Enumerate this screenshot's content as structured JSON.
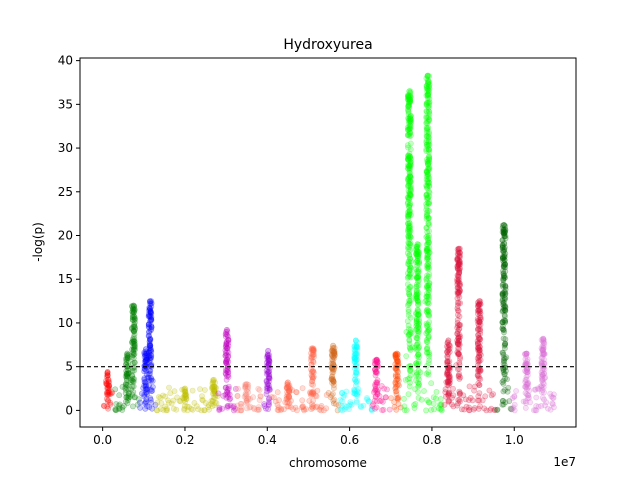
{
  "chart_data": {
    "type": "scatter",
    "title": "Hydroxyurea",
    "xlabel": "chromosome",
    "ylabel": "-log(p)",
    "x_offset_label": "1e7",
    "xlim": [
      -0.055,
      1.15
    ],
    "ylim": [
      -1.9,
      40.3
    ],
    "x_ticks": [
      0.0,
      0.2,
      0.4,
      0.6,
      0.8,
      1.0
    ],
    "x_tick_labels": [
      "0.0",
      "0.2",
      "0.4",
      "0.6",
      "0.8",
      "1.0"
    ],
    "y_ticks": [
      0,
      5,
      10,
      15,
      20,
      25,
      30,
      35,
      40
    ],
    "y_tick_labels": [
      "0",
      "5",
      "10",
      "15",
      "20",
      "25",
      "30",
      "35",
      "40"
    ],
    "threshold": 5,
    "grid": false,
    "series": [
      {
        "color": "#ff0000",
        "x_range": [
          0.0,
          0.025
        ],
        "peaks": [
          [
            0.012,
            4.4
          ]
        ]
      },
      {
        "color": "#008000",
        "x_range": [
          0.025,
          0.09
        ],
        "peaks": [
          [
            0.075,
            12.0
          ],
          [
            0.06,
            6.5
          ]
        ]
      },
      {
        "color": "#0000ff",
        "x_range": [
          0.09,
          0.13
        ],
        "peaks": [
          [
            0.115,
            12.5
          ],
          [
            0.105,
            7.0
          ]
        ]
      },
      {
        "color": "#bfbf00",
        "x_range": [
          0.13,
          0.28
        ],
        "peaks": [
          [
            0.27,
            3.5
          ],
          [
            0.2,
            2.5
          ]
        ]
      },
      {
        "color": "#bf00bf",
        "x_range": [
          0.28,
          0.325
        ],
        "peaks": [
          [
            0.302,
            9.2
          ]
        ]
      },
      {
        "color": "#fa8072",
        "x_range": [
          0.325,
          0.39
        ],
        "peaks": [
          [
            0.35,
            3.0
          ]
        ]
      },
      {
        "color": "#9400d3",
        "x_range": [
          0.39,
          0.41
        ],
        "peaks": [
          [
            0.402,
            6.8
          ]
        ]
      },
      {
        "color": "#ff6347",
        "x_range": [
          0.41,
          0.545
        ],
        "peaks": [
          [
            0.51,
            7.1
          ],
          [
            0.45,
            3.2
          ]
        ]
      },
      {
        "color": "#d2691e",
        "x_range": [
          0.545,
          0.575
        ],
        "peaks": [
          [
            0.56,
            7.4
          ]
        ]
      },
      {
        "color": "#00ffff",
        "x_range": [
          0.575,
          0.655
        ],
        "peaks": [
          [
            0.615,
            8.0
          ]
        ]
      },
      {
        "color": "#ff1493",
        "x_range": [
          0.655,
          0.7
        ],
        "peaks": [
          [
            0.665,
            5.8
          ]
        ]
      },
      {
        "color": "#ff4500",
        "x_range": [
          0.7,
          0.725
        ],
        "peaks": [
          [
            0.715,
            6.5
          ]
        ]
      },
      {
        "color": "#00ff00",
        "x_range": [
          0.725,
          0.825
        ],
        "peaks": [
          [
            0.745,
            36.5
          ],
          [
            0.79,
            38.3
          ],
          [
            0.765,
            19.0
          ]
        ]
      },
      {
        "color": "#dc143c",
        "x_range": [
          0.825,
          0.955
        ],
        "peaks": [
          [
            0.865,
            18.5
          ],
          [
            0.915,
            12.5
          ],
          [
            0.84,
            8.0
          ]
        ]
      },
      {
        "color": "#006400",
        "x_range": [
          0.955,
          0.995
        ],
        "peaks": [
          [
            0.975,
            21.2
          ]
        ]
      },
      {
        "color": "#da70d6",
        "x_range": [
          0.995,
          1.1
        ],
        "peaks": [
          [
            1.03,
            6.5
          ],
          [
            1.07,
            8.2
          ]
        ]
      }
    ]
  }
}
